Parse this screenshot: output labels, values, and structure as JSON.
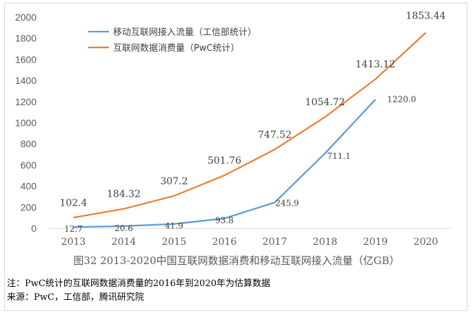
{
  "chart_data": {
    "type": "line",
    "categories": [
      "2013",
      "2014",
      "2015",
      "2016",
      "2017",
      "2018",
      "2019",
      "2020"
    ],
    "ylim": [
      0,
      2000
    ],
    "yticks": [
      0,
      200,
      400,
      600,
      800,
      1000,
      1200,
      1400,
      1600,
      1800,
      2000
    ],
    "ytick_labels": [
      "0",
      "200",
      "400",
      "600",
      "800",
      "1000",
      "1200",
      "1400",
      "1600",
      "1800",
      "2000"
    ],
    "grid": false,
    "legend_position": "top-left",
    "series": [
      {
        "name": "移动互联网接入流量（工信部统计）",
        "color": "#5b9bd5",
        "values": [
          12.7,
          20.6,
          41.9,
          93.8,
          245.9,
          711.1,
          1220.0,
          null
        ],
        "labels": [
          "12.7",
          "20.6",
          "41.9",
          "93.8",
          "245.9",
          "711.1",
          "1220.0",
          ""
        ]
      },
      {
        "name": "互联网数据消费量（PwC统计）",
        "color": "#ed7d31",
        "values": [
          102.4,
          184.32,
          307.2,
          501.76,
          747.52,
          1054.72,
          1413.12,
          1853.44
        ],
        "labels": [
          "102.4",
          "184.32",
          "307.2",
          "501.76",
          "747.52",
          "1054.72",
          "1413.12",
          "1853.44"
        ]
      }
    ]
  },
  "caption": "图32  2013-2020中国互联网数据消费和移动互联网接入流量（亿GB）",
  "notes": {
    "note": "注：PwC统计的互联网数据消费量的2016年到2020年为估算数据",
    "source": "来源：PwC，工信部，腾讯研究院"
  }
}
